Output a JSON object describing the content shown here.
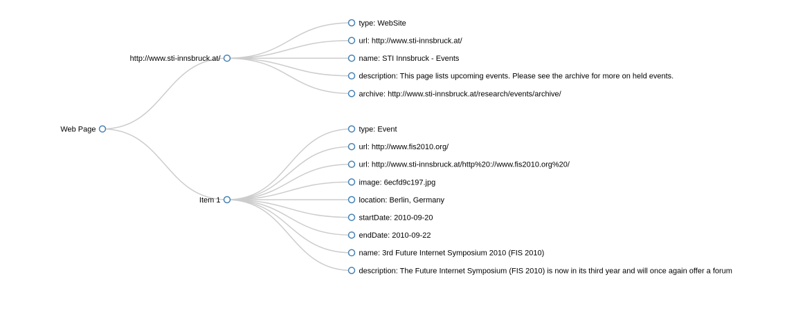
{
  "tree": {
    "label": "Web Page",
    "children": [
      {
        "label": "http://www.sti-innsbruck.at/",
        "children": [
          {
            "label": "type: WebSite"
          },
          {
            "label": "url: http://www.sti-innsbruck.at/"
          },
          {
            "label": "name: STI Innsbruck - Events"
          },
          {
            "label": "description: This page lists upcoming events. Please see the archive for more on held events."
          },
          {
            "label": "archive: http://www.sti-innsbruck.at/research/events/archive/"
          }
        ]
      },
      {
        "label": "Item 1",
        "children": [
          {
            "label": "type: Event"
          },
          {
            "label": "url: http://www.fis2010.org/"
          },
          {
            "label": "url: http://www.sti-innsbruck.at/http%20://www.fis2010.org%20/"
          },
          {
            "label": "image: 6ecfd9c197.jpg"
          },
          {
            "label": "location: Berlin, Germany"
          },
          {
            "label": "startDate: 2010-09-20"
          },
          {
            "label": "endDate: 2010-09-22"
          },
          {
            "label": "name: 3rd Future Internet Symposium 2010 (FIS 2010)"
          },
          {
            "label": "description: The Future Internet Symposium (FIS 2010) is now in its third year and will once again offer a forum"
          }
        ]
      }
    ]
  },
  "colors": {
    "link": "#cccccc",
    "node_stroke": "#4682b4",
    "node_fill": "#ffffff",
    "text": "#000000"
  }
}
